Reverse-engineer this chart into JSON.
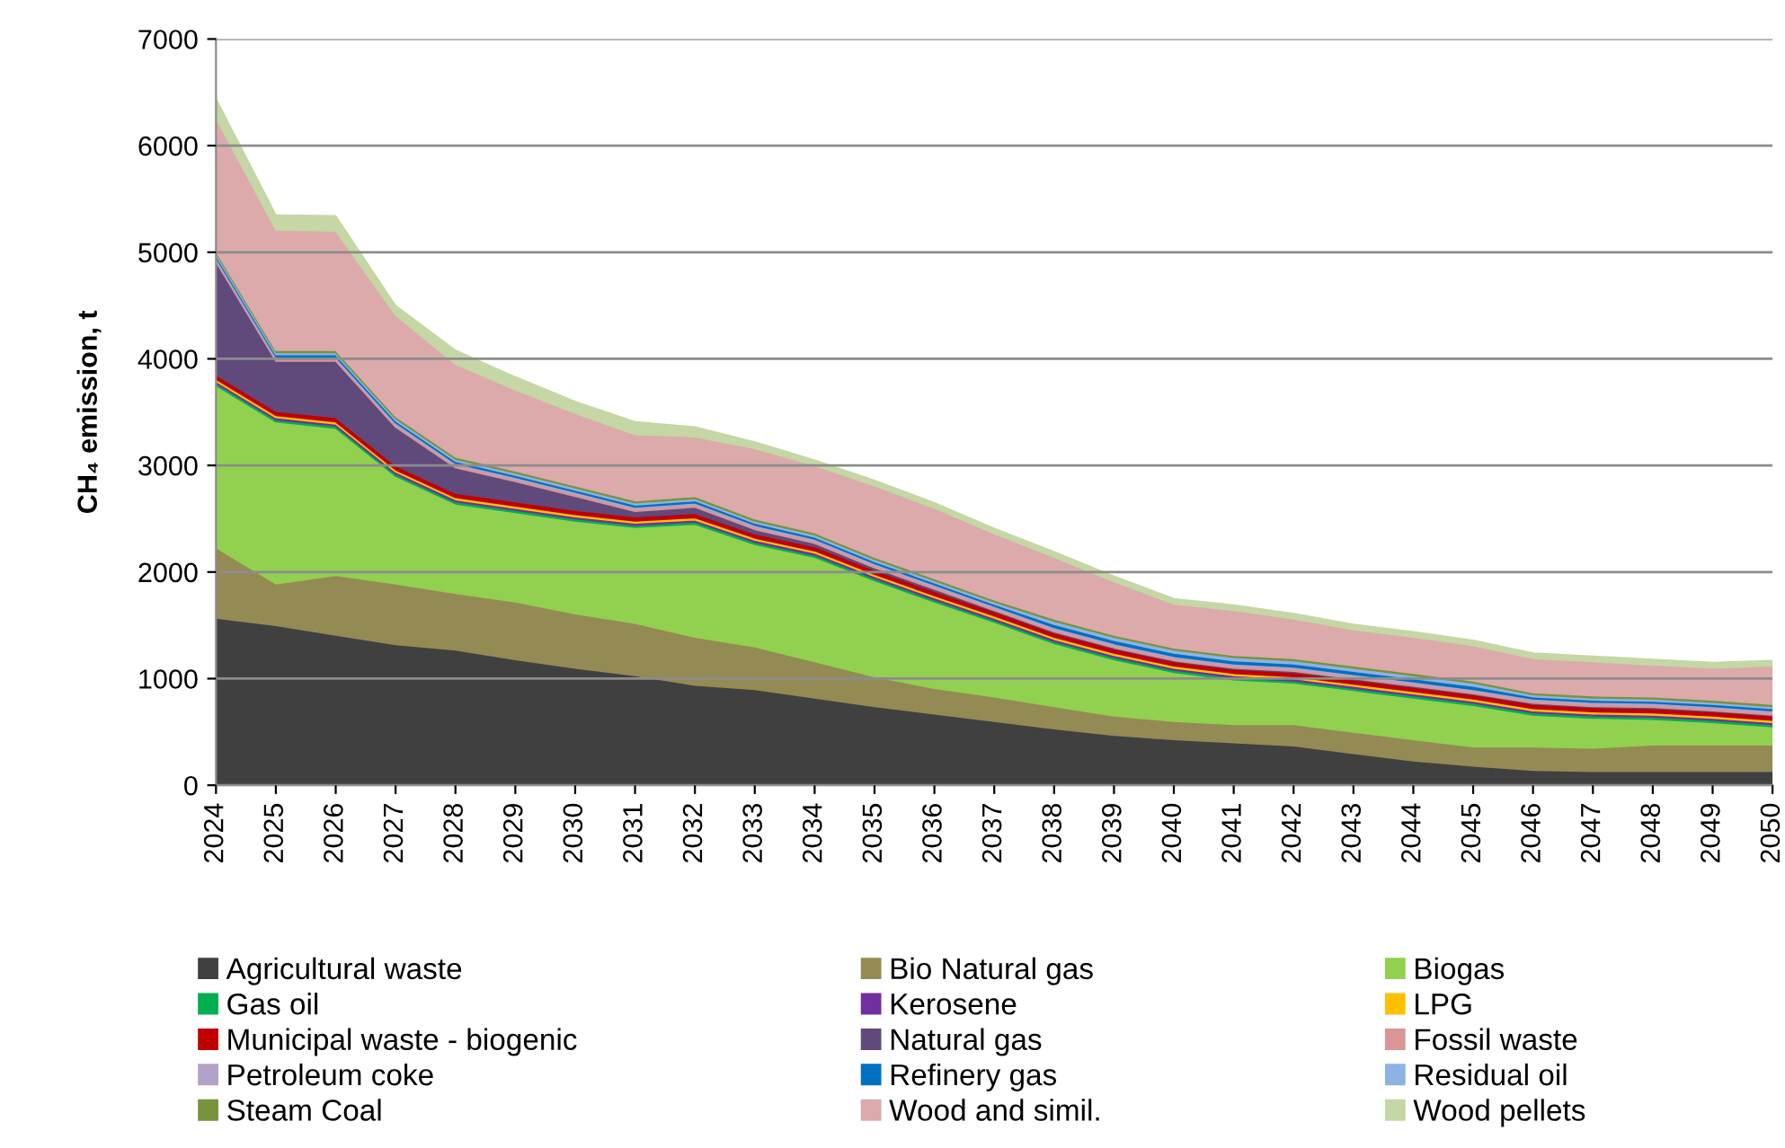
{
  "chart_data": {
    "type": "area",
    "stacked": true,
    "ylabel": "CH₄ emission, t",
    "x": [
      2024,
      2025,
      2026,
      2027,
      2028,
      2029,
      2030,
      2031,
      2032,
      2033,
      2034,
      2035,
      2036,
      2037,
      2038,
      2039,
      2040,
      2041,
      2042,
      2043,
      2044,
      2045,
      2046,
      2047,
      2048,
      2049,
      2050
    ],
    "xlim": [
      2024,
      2050
    ],
    "xticks": [
      2024,
      2025,
      2026,
      2027,
      2028,
      2029,
      2030,
      2031,
      2032,
      2033,
      2034,
      2035,
      2036,
      2037,
      2038,
      2039,
      2040,
      2041,
      2042,
      2043,
      2044,
      2045,
      2046,
      2047,
      2048,
      2049,
      2050
    ],
    "ylim": [
      0,
      7000
    ],
    "yticks": [
      0,
      1000,
      2000,
      3000,
      4000,
      5000,
      6000,
      7000
    ],
    "grid": "y",
    "legend": "bottom",
    "series": [
      {
        "name": "Agricultural waste",
        "color": "#404040",
        "values": [
          1570,
          1500,
          1410,
          1320,
          1270,
          1180,
          1100,
          1030,
          940,
          900,
          820,
          740,
          670,
          600,
          530,
          470,
          430,
          400,
          370,
          300,
          230,
          180,
          140,
          130,
          130,
          130,
          130
        ]
      },
      {
        "name": "Bio Natural gas",
        "color": "#948a54",
        "values": [
          660,
          390,
          560,
          570,
          530,
          540,
          510,
          490,
          450,
          400,
          340,
          280,
          240,
          230,
          210,
          180,
          170,
          170,
          200,
          200,
          200,
          180,
          220,
          220,
          250,
          250,
          250
        ]
      },
      {
        "name": "Biogas",
        "color": "#92d050",
        "values": [
          1520,
          1520,
          1380,
          1010,
          840,
          840,
          870,
          900,
          1060,
          960,
          980,
          900,
          810,
          700,
          590,
          530,
          460,
          420,
          390,
          390,
          390,
          390,
          300,
          280,
          240,
          210,
          170
        ]
      },
      {
        "name": "Gas oil",
        "color": "#00b050",
        "values": [
          20,
          20,
          20,
          20,
          20,
          20,
          20,
          20,
          20,
          20,
          20,
          20,
          20,
          20,
          20,
          20,
          20,
          20,
          20,
          20,
          20,
          20,
          20,
          20,
          20,
          20,
          20
        ]
      },
      {
        "name": "Kerosene",
        "color": "#7030a0",
        "values": [
          20,
          20,
          20,
          20,
          20,
          20,
          20,
          20,
          20,
          20,
          20,
          20,
          20,
          20,
          20,
          20,
          20,
          20,
          20,
          20,
          20,
          20,
          20,
          20,
          20,
          20,
          20
        ]
      },
      {
        "name": "LPG",
        "color": "#ffc000",
        "values": [
          20,
          20,
          20,
          20,
          20,
          20,
          20,
          20,
          20,
          20,
          20,
          20,
          20,
          20,
          20,
          20,
          20,
          20,
          20,
          20,
          20,
          20,
          20,
          20,
          20,
          20,
          20
        ]
      },
      {
        "name": "Municipal waste - biogenic",
        "color": "#c00000",
        "values": [
          40,
          40,
          40,
          40,
          40,
          40,
          40,
          40,
          40,
          40,
          40,
          40,
          40,
          40,
          40,
          40,
          40,
          40,
          40,
          40,
          40,
          40,
          40,
          40,
          40,
          40,
          40
        ]
      },
      {
        "name": "Natural gas",
        "color": "#604a7b",
        "values": [
          1060,
          470,
          530,
          360,
          240,
          190,
          130,
          50,
          60,
          40,
          30,
          20,
          20,
          10,
          10,
          10,
          10,
          10,
          10,
          10,
          10,
          10,
          10,
          10,
          10,
          10,
          10
        ]
      },
      {
        "name": "Fossil waste",
        "color": "#d99694",
        "values": [
          20,
          20,
          20,
          20,
          20,
          20,
          20,
          20,
          20,
          20,
          20,
          20,
          20,
          20,
          20,
          20,
          20,
          20,
          20,
          20,
          20,
          20,
          20,
          20,
          20,
          20,
          20
        ]
      },
      {
        "name": "Petroleum coke",
        "color": "#b3a2c7",
        "values": [
          20,
          20,
          20,
          20,
          20,
          20,
          20,
          20,
          20,
          20,
          20,
          20,
          20,
          20,
          20,
          20,
          20,
          20,
          20,
          20,
          20,
          20,
          20,
          20,
          20,
          20,
          20
        ]
      },
      {
        "name": "Refinery gas",
        "color": "#0070c0",
        "values": [
          20,
          20,
          20,
          20,
          20,
          20,
          20,
          20,
          20,
          20,
          20,
          20,
          20,
          20,
          30,
          30,
          30,
          30,
          30,
          30,
          30,
          30,
          20,
          20,
          20,
          20,
          20
        ]
      },
      {
        "name": "Residual oil",
        "color": "#8db3e2",
        "values": [
          20,
          20,
          20,
          20,
          20,
          20,
          20,
          20,
          20,
          20,
          20,
          20,
          20,
          20,
          30,
          30,
          30,
          30,
          30,
          30,
          30,
          30,
          20,
          20,
          20,
          20,
          20
        ]
      },
      {
        "name": "Steam Coal",
        "color": "#77933c",
        "values": [
          20,
          20,
          20,
          20,
          20,
          20,
          20,
          20,
          20,
          20,
          20,
          20,
          20,
          20,
          20,
          20,
          20,
          20,
          20,
          20,
          20,
          20,
          20,
          20,
          20,
          20,
          20
        ]
      },
      {
        "name": "Wood and simil.",
        "color": "#dcaaaa",
        "values": [
          1250,
          1130,
          1120,
          950,
          870,
          760,
          680,
          620,
          560,
          660,
          630,
          670,
          660,
          620,
          580,
          500,
          410,
          420,
          370,
          340,
          340,
          330,
          320,
          320,
          300,
          300,
          360
        ]
      },
      {
        "name": "Wood pellets",
        "color": "#c4d7a4",
        "values": [
          180,
          140,
          140,
          90,
          130,
          120,
          110,
          120,
          90,
          60,
          50,
          50,
          50,
          50,
          50,
          50,
          50,
          50,
          50,
          50,
          50,
          50,
          50,
          50,
          50,
          50,
          50
        ]
      }
    ]
  }
}
